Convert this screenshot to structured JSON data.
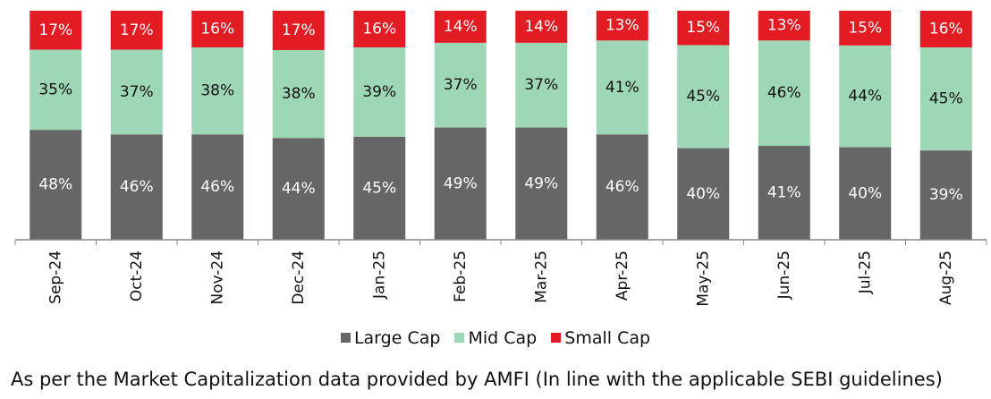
{
  "chart_data": {
    "type": "bar",
    "stacked": true,
    "normalized_percent": true,
    "categories": [
      "Sep-24",
      "Oct-24",
      "Nov-24",
      "Dec-24",
      "Jan-25",
      "Feb-25",
      "Mar-25",
      "Apr-25",
      "May-25",
      "Jun-25",
      "Jul-25",
      "Aug-25"
    ],
    "series": [
      {
        "name": "Large Cap",
        "color": "#666666",
        "values": [
          48,
          46,
          46,
          44,
          45,
          49,
          49,
          46,
          40,
          41,
          40,
          39
        ]
      },
      {
        "name": "Mid Cap",
        "color": "#9ed7b5",
        "values": [
          35,
          37,
          38,
          38,
          39,
          37,
          37,
          41,
          45,
          46,
          44,
          45
        ]
      },
      {
        "name": "Small Cap",
        "color": "#e31b23",
        "values": [
          17,
          17,
          16,
          17,
          16,
          14,
          14,
          13,
          15,
          13,
          15,
          16
        ]
      }
    ],
    "data_label_suffix": "%",
    "legend_position": "bottom",
    "grid": false
  },
  "footnote": "As per the Market Capitalization data provided by AMFI (In line with the applicable SEBI guidelines)"
}
